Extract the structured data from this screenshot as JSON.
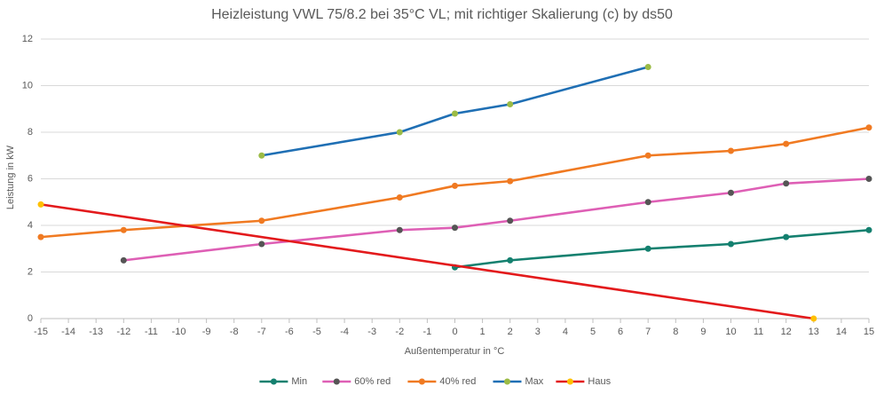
{
  "chart_data": {
    "type": "line",
    "title": "Heizleistung VWL 75/8.2 bei 35°C VL; mit richtiger Skalierung (c) by ds50",
    "x_label": "Außentemperatur in °C",
    "y_label": "Leistung in kW",
    "xlim": [
      -15,
      15
    ],
    "xticks": [
      -15,
      -14,
      -13,
      -12,
      -11,
      -10,
      -9,
      -8,
      -7,
      -6,
      -5,
      -4,
      -3,
      -2,
      -1,
      0,
      1,
      2,
      3,
      4,
      5,
      6,
      7,
      8,
      9,
      10,
      11,
      12,
      13,
      14,
      15
    ],
    "ylim": [
      0,
      12
    ],
    "yticks": [
      0,
      2,
      4,
      6,
      8,
      10,
      12
    ],
    "grid": true,
    "legend": "bottom",
    "series": [
      {
        "name": "Min",
        "color": "#14806f",
        "marker_color": "#14806f",
        "x": [
          0,
          2,
          7,
          10,
          12,
          15
        ],
        "values": [
          2.2,
          2.5,
          3.0,
          3.2,
          3.5,
          3.8
        ]
      },
      {
        "name": "60% red",
        "color": "#de5fb5",
        "marker_color": "#555555",
        "x": [
          -12,
          -7,
          -2,
          0,
          2,
          7,
          10,
          12,
          15
        ],
        "values": [
          2.5,
          3.2,
          3.8,
          3.9,
          4.2,
          5.0,
          5.4,
          5.8,
          6.0
        ]
      },
      {
        "name": "40% red",
        "color": "#f07a22",
        "marker_color": "#f07a22",
        "x": [
          -15,
          -12,
          -7,
          -2,
          0,
          2,
          7,
          10,
          12,
          15
        ],
        "values": [
          3.5,
          3.8,
          4.2,
          5.2,
          5.7,
          5.9,
          7.0,
          7.2,
          7.5,
          8.2
        ]
      },
      {
        "name": "Max",
        "color": "#1f6fb4",
        "marker_color": "#9bbb45",
        "x": [
          -7,
          -2,
          0,
          2,
          7
        ],
        "values": [
          7.0,
          8.0,
          8.8,
          9.2,
          10.8
        ]
      },
      {
        "name": "Haus",
        "color": "#e31a1c",
        "marker_color": "#ffc000",
        "x": [
          -15,
          13
        ],
        "values": [
          4.9,
          0
        ]
      }
    ]
  }
}
